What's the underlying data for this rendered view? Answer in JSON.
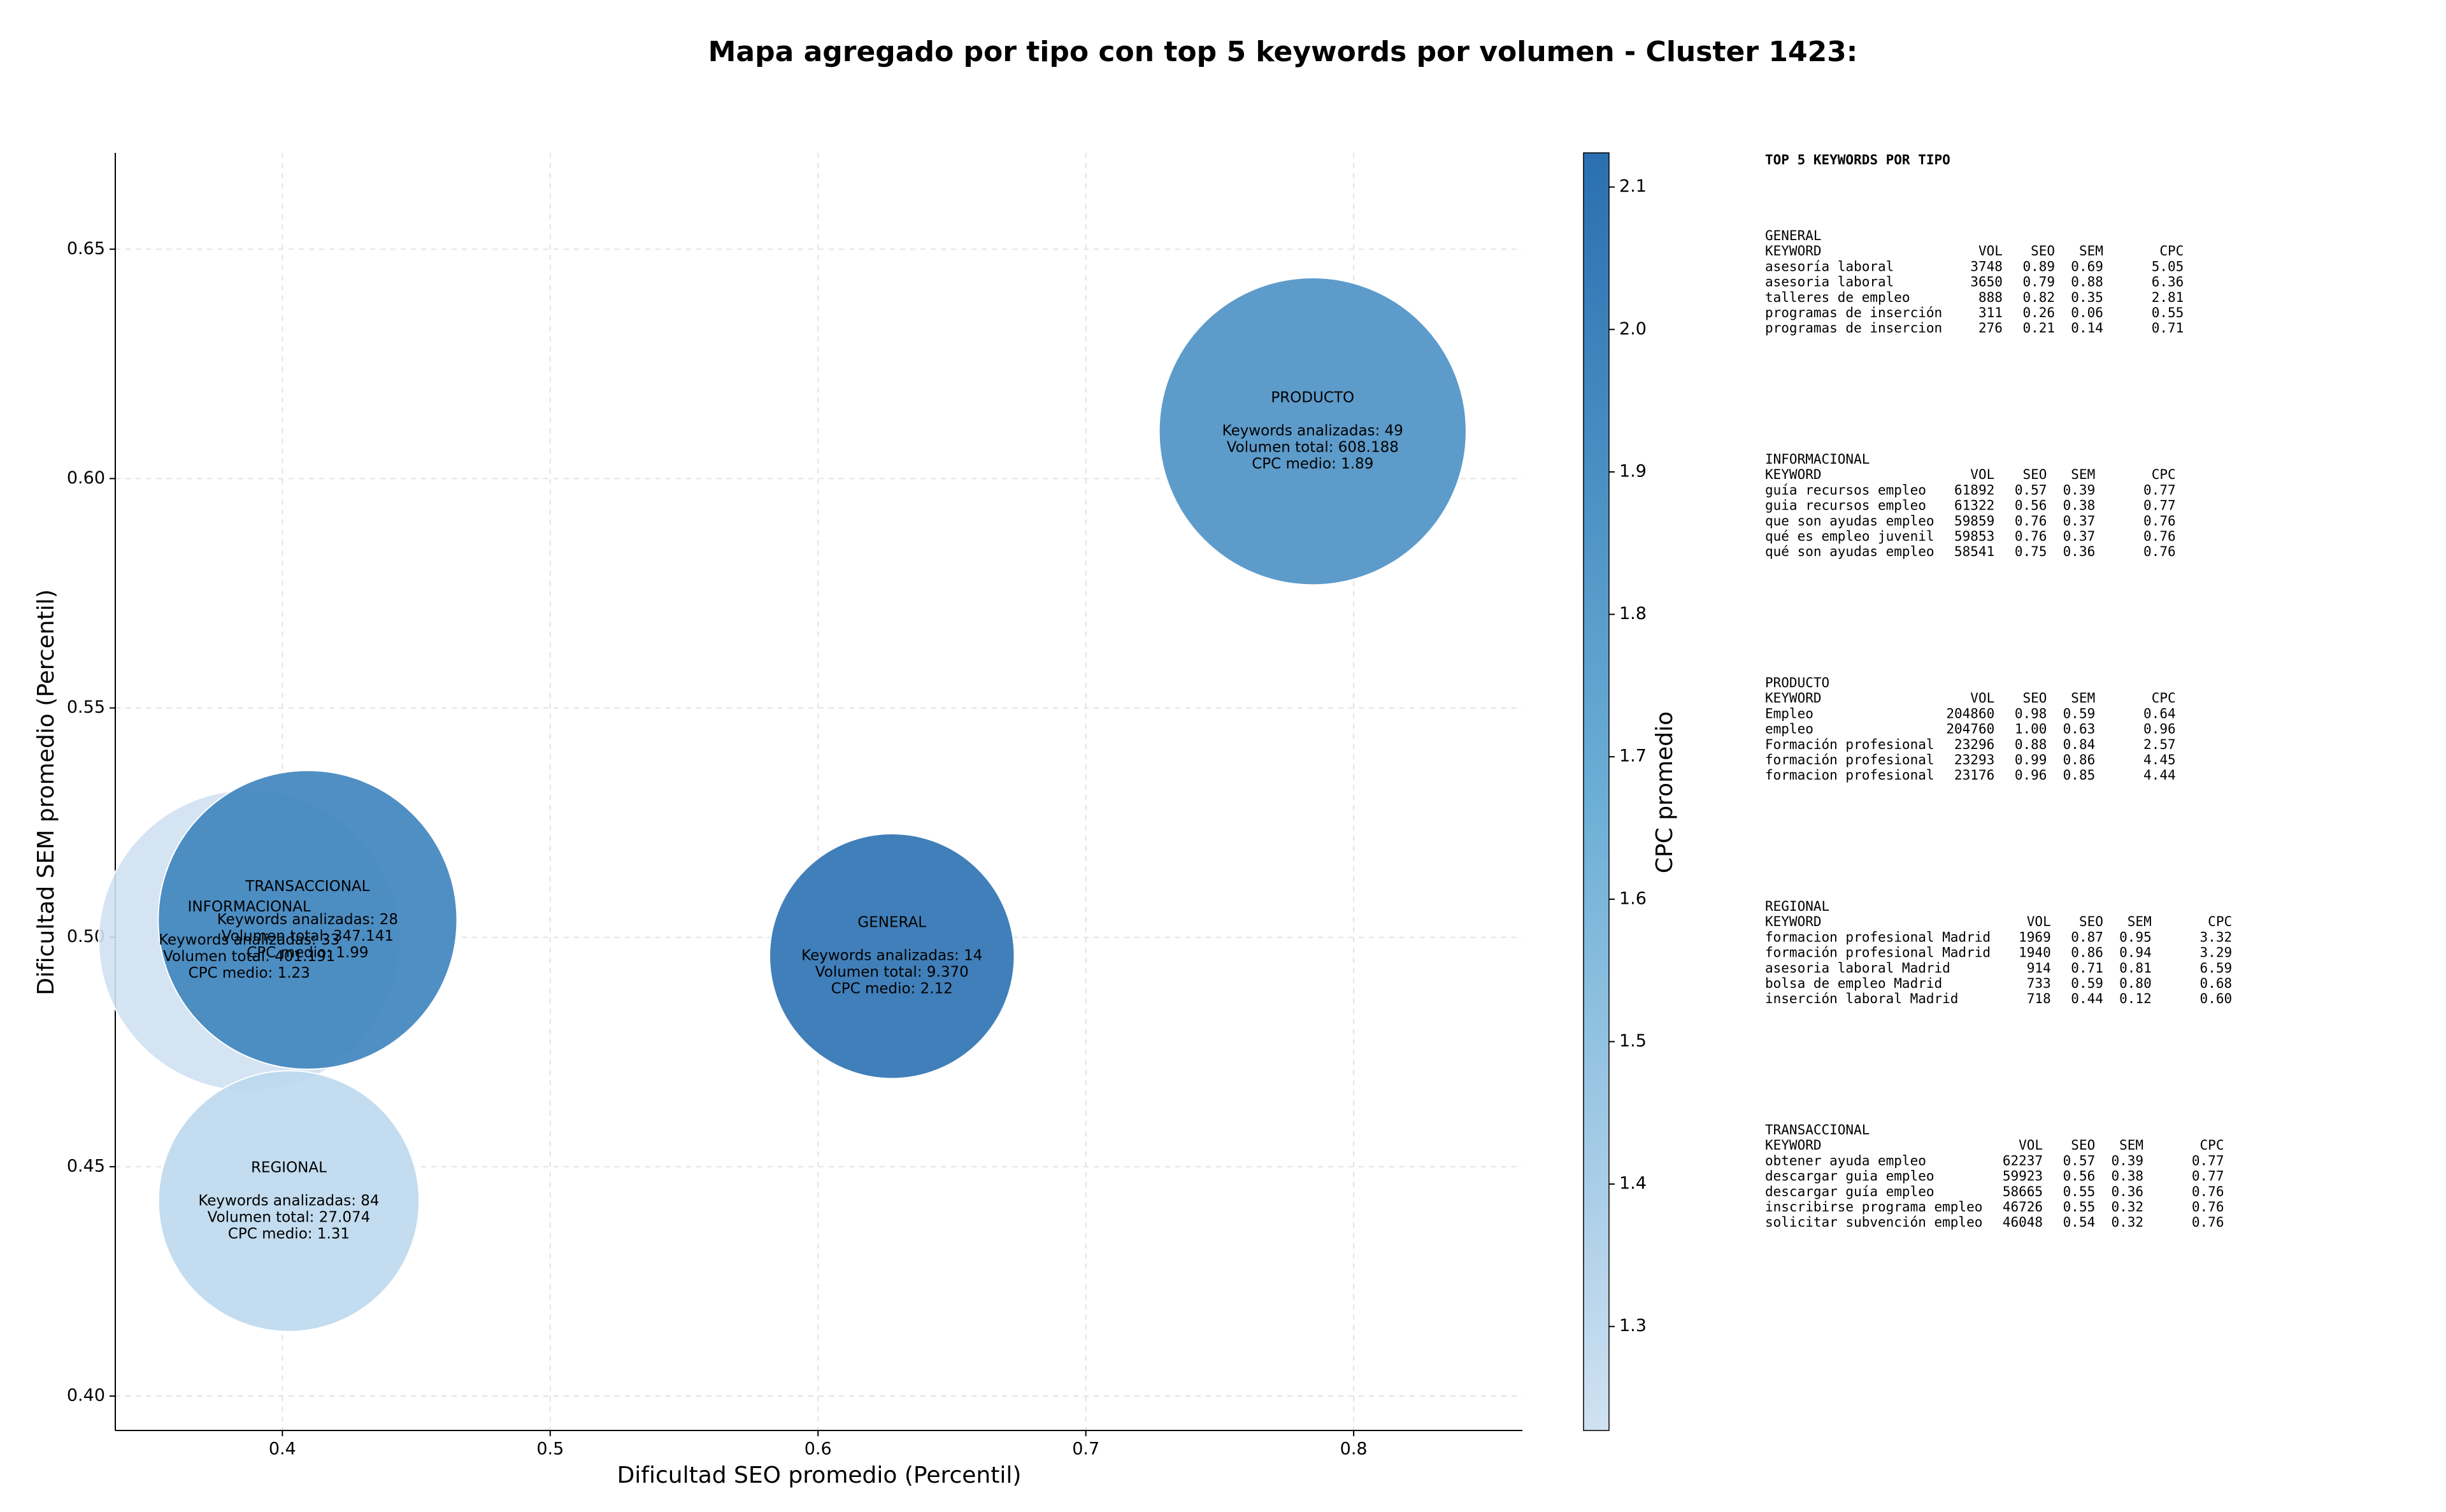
{
  "chart_data": {
    "type": "bubble",
    "title": "Mapa agregado por tipo con top 5 keywords por volumen - Cluster 1423:",
    "xlabel": "Dificultad SEO promedio (Percentil)",
    "ylabel": "Dificultad SEM promedio (Percentil)",
    "xlim": [
      0.3376,
      0.863
    ],
    "ylim": [
      0.3925,
      0.671
    ],
    "xticks": [
      0.4,
      0.5,
      0.6,
      0.7,
      0.8
    ],
    "yticks": [
      {
        "value": 0.4,
        "label": "0.40"
      },
      0.45,
      {
        "value": 0.5,
        "label": "0.50"
      },
      0.55,
      {
        "value": 0.6,
        "label": "0.60"
      },
      0.65
    ],
    "grid": true,
    "alpha": 0.9,
    "colormap": [
      "#d0e1f2",
      "#6aaed6",
      "#2a70b1"
    ],
    "colorbar": {
      "label": "CPC promedio",
      "lim": [
        1.227,
        2.124
      ],
      "ticks": [
        1.3,
        1.4,
        1.5,
        1.6,
        1.7,
        1.8,
        1.9,
        {
          "value": 2.0,
          "label": "2.0"
        },
        2.1
      ]
    },
    "points": [
      {
        "name": "GENERAL",
        "x": 0.6276,
        "y": 0.4959,
        "volume": 9370,
        "cpc": 2.12,
        "lines": [
          "Keywords analizadas: 14",
          "Volumen total: 9.370",
          "CPC medio: 2.12"
        ]
      },
      {
        "name": "INFORMACIONAL",
        "x": 0.3876,
        "y": 0.4993,
        "volume": 401191,
        "cpc": 1.23,
        "lines": [
          "Keywords analizadas: 33",
          "Volumen total: 401.191",
          "CPC medio: 1.23"
        ]
      },
      {
        "name": "PRODUCTO",
        "x": 0.7847,
        "y": 0.6103,
        "volume": 608188,
        "cpc": 1.89,
        "lines": [
          "Keywords analizadas: 49",
          "Volumen total: 608.188",
          "CPC medio: 1.89"
        ]
      },
      {
        "name": "REGIONAL",
        "x": 0.4024,
        "y": 0.4425,
        "volume": 27074,
        "cpc": 1.31,
        "lines": [
          "Keywords analizadas: 84",
          "Volumen total: 27.074",
          "CPC medio: 1.31"
        ]
      },
      {
        "name": "TRANSACCIONAL",
        "x": 0.4094,
        "y": 0.5038,
        "volume": 347141,
        "cpc": 1.99,
        "lines": [
          "Keywords analizadas: 28",
          "Volumen total: 347.141",
          "CPC medio: 1.99"
        ]
      }
    ]
  },
  "keyword_panel": {
    "title": "TOP 5 KEYWORDS POR TIPO",
    "header": [
      "KEYWORD",
      "VOL",
      "SEO",
      "SEM",
      "CPC"
    ],
    "groups": [
      {
        "name": "GENERAL",
        "rows": [
          [
            "asesoría laboral",
            "3748",
            "0.89",
            "0.69",
            "5.05"
          ],
          [
            "asesoria laboral",
            "3650",
            "0.79",
            "0.88",
            "6.36"
          ],
          [
            "talleres de empleo",
            "888",
            "0.82",
            "0.35",
            "2.81"
          ],
          [
            "programas de inserción",
            "311",
            "0.26",
            "0.06",
            "0.55"
          ],
          [
            "programas de insercion",
            "276",
            "0.21",
            "0.14",
            "0.71"
          ]
        ]
      },
      {
        "name": "INFORMACIONAL",
        "rows": [
          [
            "guía recursos empleo",
            "61892",
            "0.57",
            "0.39",
            "0.77"
          ],
          [
            "guia recursos empleo",
            "61322",
            "0.56",
            "0.38",
            "0.77"
          ],
          [
            "que son ayudas empleo",
            "59859",
            "0.76",
            "0.37",
            "0.76"
          ],
          [
            "qué es empleo juvenil",
            "59853",
            "0.76",
            "0.37",
            "0.76"
          ],
          [
            "qué son ayudas empleo",
            "58541",
            "0.75",
            "0.36",
            "0.76"
          ]
        ]
      },
      {
        "name": "PRODUCTO",
        "rows": [
          [
            "Empleo",
            "204860",
            "0.98",
            "0.59",
            "0.64"
          ],
          [
            "empleo",
            "204760",
            "1.00",
            "0.63",
            "0.96"
          ],
          [
            "Formación profesional",
            "23296",
            "0.88",
            "0.84",
            "2.57"
          ],
          [
            "formación profesional",
            "23293",
            "0.99",
            "0.86",
            "4.45"
          ],
          [
            "formacion profesional",
            "23176",
            "0.96",
            "0.85",
            "4.44"
          ]
        ]
      },
      {
        "name": "REGIONAL",
        "rows": [
          [
            "formacion profesional Madrid",
            "1969",
            "0.87",
            "0.95",
            "3.32"
          ],
          [
            "formación profesional Madrid",
            "1940",
            "0.86",
            "0.94",
            "3.29"
          ],
          [
            "asesoria laboral Madrid",
            "914",
            "0.71",
            "0.81",
            "6.59"
          ],
          [
            "bolsa de empleo Madrid",
            "733",
            "0.59",
            "0.80",
            "0.68"
          ],
          [
            "inserción laboral Madrid",
            "718",
            "0.44",
            "0.12",
            "0.60"
          ]
        ]
      },
      {
        "name": "TRANSACCIONAL",
        "rows": [
          [
            "obtener ayuda empleo",
            "62237",
            "0.57",
            "0.39",
            "0.77"
          ],
          [
            "descargar guia empleo",
            "59923",
            "0.56",
            "0.38",
            "0.77"
          ],
          [
            "descargar guía empleo",
            "58665",
            "0.55",
            "0.36",
            "0.76"
          ],
          [
            "inscribirse programa empleo",
            "46726",
            "0.55",
            "0.32",
            "0.76"
          ],
          [
            "solicitar subvención empleo",
            "46048",
            "0.54",
            "0.32",
            "0.76"
          ]
        ]
      }
    ]
  }
}
